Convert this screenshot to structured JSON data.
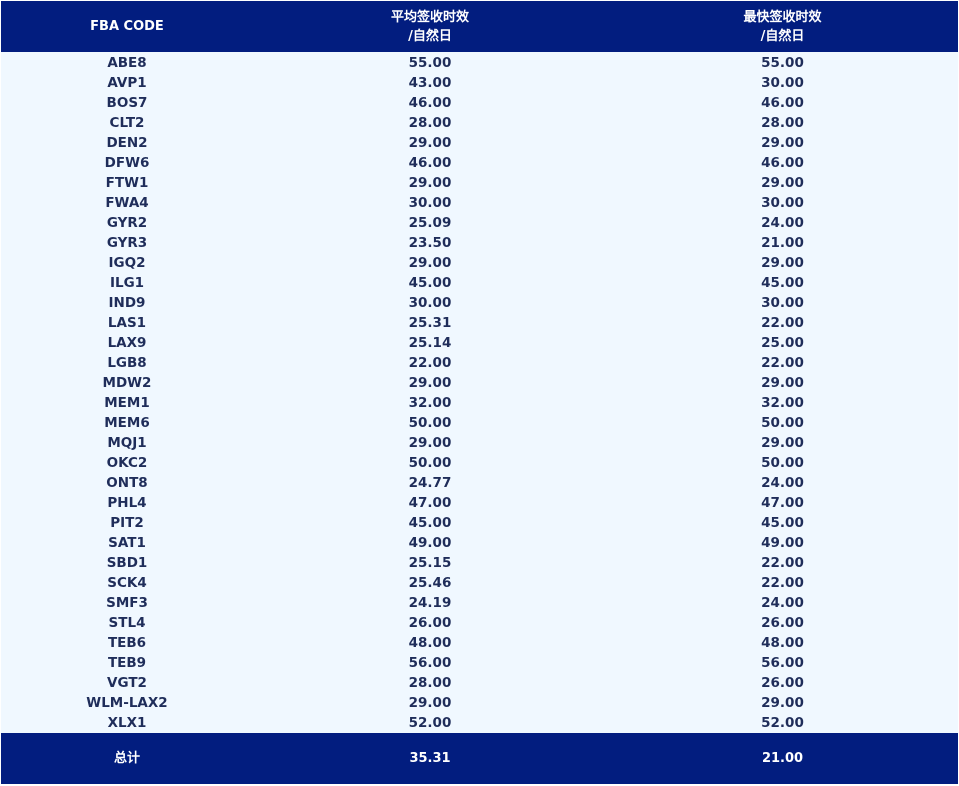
{
  "header": {
    "col1": "FBA CODE",
    "col2_line1": "平均签收时效",
    "col2_line2": "/自然日",
    "col3_line1": "最快签收时效",
    "col3_line2": "/自然日"
  },
  "rows": [
    [
      "ABE8",
      "55.00",
      "55.00"
    ],
    [
      "AVP1",
      "43.00",
      "30.00"
    ],
    [
      "BOS7",
      "46.00",
      "46.00"
    ],
    [
      "CLT2",
      "28.00",
      "28.00"
    ],
    [
      "DEN2",
      "29.00",
      "29.00"
    ],
    [
      "DFW6",
      "46.00",
      "46.00"
    ],
    [
      "FTW1",
      "29.00",
      "29.00"
    ],
    [
      "FWA4",
      "30.00",
      "30.00"
    ],
    [
      "GYR2",
      "25.09",
      "24.00"
    ],
    [
      "GYR3",
      "23.50",
      "21.00"
    ],
    [
      "IGQ2",
      "29.00",
      "29.00"
    ],
    [
      "ILG1",
      "45.00",
      "45.00"
    ],
    [
      "IND9",
      "30.00",
      "30.00"
    ],
    [
      "LAS1",
      "25.31",
      "22.00"
    ],
    [
      "LAX9",
      "25.14",
      "25.00"
    ],
    [
      "LGB8",
      "22.00",
      "22.00"
    ],
    [
      "MDW2",
      "29.00",
      "29.00"
    ],
    [
      "MEM1",
      "32.00",
      "32.00"
    ],
    [
      "MEM6",
      "50.00",
      "50.00"
    ],
    [
      "MQJ1",
      "29.00",
      "29.00"
    ],
    [
      "OKC2",
      "50.00",
      "50.00"
    ],
    [
      "ONT8",
      "24.77",
      "24.00"
    ],
    [
      "PHL4",
      "47.00",
      "47.00"
    ],
    [
      "PIT2",
      "45.00",
      "45.00"
    ],
    [
      "SAT1",
      "49.00",
      "49.00"
    ],
    [
      "SBD1",
      "25.15",
      "22.00"
    ],
    [
      "SCK4",
      "25.46",
      "22.00"
    ],
    [
      "SMF3",
      "24.19",
      "24.00"
    ],
    [
      "STL4",
      "26.00",
      "26.00"
    ],
    [
      "TEB6",
      "48.00",
      "48.00"
    ],
    [
      "TEB9",
      "56.00",
      "56.00"
    ],
    [
      "VGT2",
      "28.00",
      "26.00"
    ],
    [
      "WLM-LAX2",
      "29.00",
      "29.00"
    ],
    [
      "XLX1",
      "52.00",
      "52.00"
    ]
  ],
  "footer": {
    "label": "总计",
    "avg": "35.31",
    "fastest": "21.00"
  },
  "colors": {
    "header_bg": "#021d7f",
    "body_bg": "#f0f8ff",
    "text": "#1f2d5a"
  }
}
